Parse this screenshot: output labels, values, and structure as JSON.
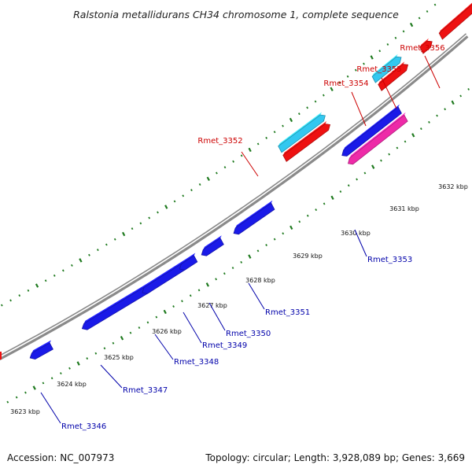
{
  "title": "Ralstonia metallidurans CH34 chromosome 1, complete sequence",
  "footer": {
    "accession": "Accession: NC_007973",
    "summary": "Topology: circular; Length: 3,928,089 bp; Genes: 3,669"
  },
  "colors": {
    "background": "#ffffff",
    "backbone": "#8a8a8a",
    "tick": "#1f7a1f",
    "gene_forward": "#ee1111",
    "gene_forward_light": "#33c8f0",
    "gene_reverse": "#1a1ae8",
    "gene_reverse_pink": "#ee2aa8",
    "label_forward": "#cc0000",
    "label_reverse": "#0000aa"
  },
  "scale_labels": [
    "3623 kbp",
    "3624 kbp",
    "3625 kbp",
    "3626 kbp",
    "3627 kbp",
    "3628 kbp",
    "3629 kbp",
    "3630 kbp",
    "3631 kbp",
    "3632 kbp"
  ],
  "genes_forward": [
    {
      "label": "Rmet_3352",
      "color": "gene_forward_light"
    },
    {
      "label": "",
      "color": "gene_forward"
    },
    {
      "label": "Rmet_3354",
      "color": "gene_forward_light"
    },
    {
      "label": "",
      "color": "gene_forward"
    },
    {
      "label": "Rmet_3355",
      "color": "gene_forward"
    },
    {
      "label": "Rmet_3356",
      "color": "gene_forward"
    }
  ],
  "genes_reverse": [
    {
      "label": "Rmet_3346",
      "color": "gene_reverse"
    },
    {
      "label": "Rmet_3347",
      "color": "gene_reverse"
    },
    {
      "label": "Rmet_3348",
      "color": "gene_reverse"
    },
    {
      "label": "Rmet_3349",
      "color": "gene_reverse"
    },
    {
      "label": "Rmet_3350",
      "color": "gene_reverse"
    },
    {
      "label": "Rmet_3351",
      "color": "gene_reverse"
    },
    {
      "label": "",
      "color": "gene_reverse"
    },
    {
      "label": "Rmet_3353",
      "color": "gene_reverse_pink"
    }
  ]
}
